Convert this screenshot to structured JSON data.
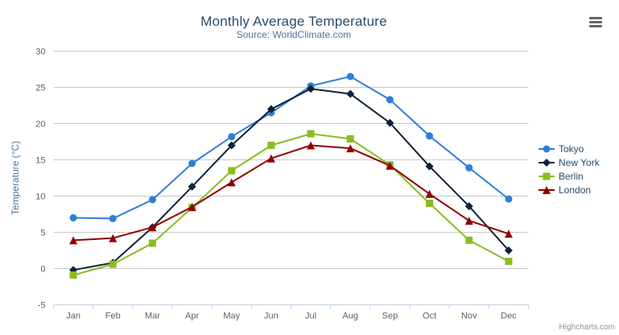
{
  "chart_data": {
    "type": "line",
    "title": "Monthly Average Temperature",
    "subtitle": "Source: WorldClimate.com",
    "ylabel": "Temperature (°C)",
    "xlabel": "",
    "ylim": [
      -5,
      30
    ],
    "ytick_step": 5,
    "grid": true,
    "legend_position": "right",
    "categories": [
      "Jan",
      "Feb",
      "Mar",
      "Apr",
      "May",
      "Jun",
      "Jul",
      "Aug",
      "Sep",
      "Oct",
      "Nov",
      "Dec"
    ],
    "series": [
      {
        "name": "Tokyo",
        "marker": "circle",
        "color": "#2f7ed8",
        "values": [
          7.0,
          6.9,
          9.5,
          14.5,
          18.2,
          21.5,
          25.2,
          26.5,
          23.3,
          18.3,
          13.9,
          9.6
        ]
      },
      {
        "name": "New York",
        "marker": "diamond",
        "color": "#0d233a",
        "values": [
          -0.2,
          0.8,
          5.7,
          11.3,
          17.0,
          22.0,
          24.8,
          24.1,
          20.1,
          14.1,
          8.6,
          2.5
        ]
      },
      {
        "name": "Berlin",
        "marker": "square",
        "color": "#8bbc21",
        "values": [
          -0.9,
          0.6,
          3.5,
          8.4,
          13.5,
          17.0,
          18.6,
          17.9,
          14.3,
          9.0,
          3.9,
          1.0
        ]
      },
      {
        "name": "London",
        "marker": "triangle",
        "color": "#910000",
        "values": [
          3.9,
          4.2,
          5.7,
          8.5,
          11.9,
          15.2,
          17.0,
          16.6,
          14.2,
          10.3,
          6.6,
          4.8
        ]
      }
    ]
  },
  "palette": {
    "title": "#274b6d",
    "subtitle": "#4d759e",
    "axis_labels": "#606060",
    "axis_title": "#4d759e",
    "grid_line": "#c8c8c8",
    "axis_line": "#c0d0e0",
    "legend_text": "#274b6d",
    "credits": "#909090",
    "menu_icon": "#666666",
    "background": "#ffffff"
  },
  "export_menu": {
    "icon": "hamburger-menu-icon"
  },
  "credits": {
    "label": "Highcharts.com"
  }
}
